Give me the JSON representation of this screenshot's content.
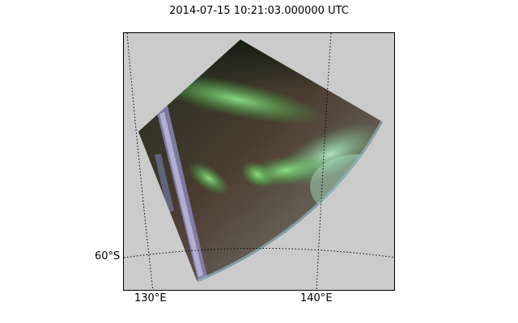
{
  "title": "2014-07-15 10:21:03.000000 UTC",
  "map": {
    "background_color": "#cbcbcb",
    "graticule": {
      "latitudes": [
        {
          "value": -60,
          "label": "60°S"
        }
      ],
      "longitudes": [
        {
          "value": 130,
          "label": "130°E"
        },
        {
          "value": 140,
          "label": "140°E"
        }
      ],
      "style": "dotted"
    },
    "image_layer": "aurora all-sky camera projection (green aurora)"
  }
}
